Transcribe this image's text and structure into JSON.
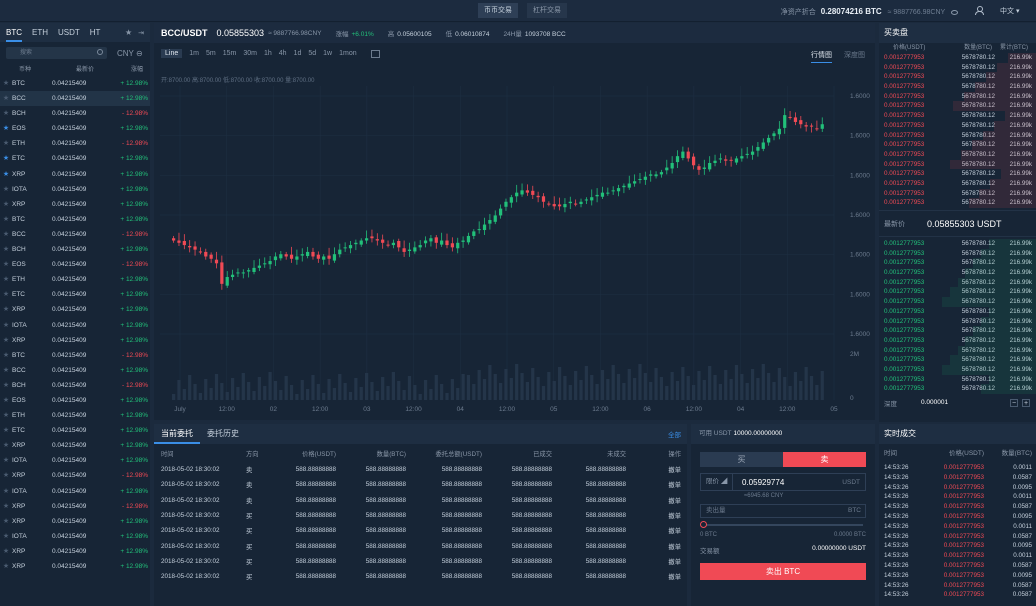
{
  "topbar": {
    "tabs": [
      {
        "label": "币币交易"
      },
      {
        "label": "杠杆交易"
      }
    ],
    "asset_label": "净资产折合",
    "asset_value": "0.28074216 BTC",
    "asset_cny": "≈ 9887766.98CNY",
    "lang": "中文"
  },
  "market_list": {
    "tabs": [
      "BTC",
      "ETH",
      "USDT",
      "HT"
    ],
    "search_placeholder": "搜索",
    "currency": "CNY",
    "headers": {
      "coin": "币种",
      "price": "最新价",
      "change": "涨幅"
    },
    "rows": [
      {
        "sym": "BTC",
        "price": "0.04215409",
        "change": "+ 12.98%",
        "dir": "up",
        "fav": false
      },
      {
        "sym": "BCC",
        "price": "0.04215409",
        "change": "+ 12.98%",
        "dir": "up",
        "fav": false
      },
      {
        "sym": "BCH",
        "price": "0.04215409",
        "change": "- 12.98%",
        "dir": "dn",
        "fav": false
      },
      {
        "sym": "EOS",
        "price": "0.04215409",
        "change": "+ 12.98%",
        "dir": "up",
        "fav": true
      },
      {
        "sym": "ETH",
        "price": "0.04215409",
        "change": "- 12.98%",
        "dir": "dn",
        "fav": false
      },
      {
        "sym": "ETC",
        "price": "0.04215409",
        "change": "+ 12.98%",
        "dir": "up",
        "fav": true
      },
      {
        "sym": "XRP",
        "price": "0.04215409",
        "change": "+ 12.98%",
        "dir": "up",
        "fav": true
      },
      {
        "sym": "IOTA",
        "price": "0.04215409",
        "change": "+ 12.98%",
        "dir": "up",
        "fav": false
      },
      {
        "sym": "XRP",
        "price": "0.04215409",
        "change": "+ 12.98%",
        "dir": "up",
        "fav": false
      },
      {
        "sym": "BTC",
        "price": "0.04215409",
        "change": "+ 12.98%",
        "dir": "up",
        "fav": false
      },
      {
        "sym": "BCC",
        "price": "0.04215409",
        "change": "- 12.98%",
        "dir": "dn",
        "fav": false
      },
      {
        "sym": "BCH",
        "price": "0.04215409",
        "change": "+ 12.98%",
        "dir": "up",
        "fav": false
      },
      {
        "sym": "EOS",
        "price": "0.04215409",
        "change": "- 12.98%",
        "dir": "dn",
        "fav": false
      },
      {
        "sym": "ETH",
        "price": "0.04215409",
        "change": "+ 12.98%",
        "dir": "up",
        "fav": false
      },
      {
        "sym": "ETC",
        "price": "0.04215409",
        "change": "+ 12.98%",
        "dir": "up",
        "fav": false
      },
      {
        "sym": "XRP",
        "price": "0.04215409",
        "change": "+ 12.98%",
        "dir": "up",
        "fav": false
      },
      {
        "sym": "IOTA",
        "price": "0.04215409",
        "change": "+ 12.98%",
        "dir": "up",
        "fav": false
      },
      {
        "sym": "XRP",
        "price": "0.04215409",
        "change": "+ 12.98%",
        "dir": "up",
        "fav": false
      },
      {
        "sym": "BTC",
        "price": "0.04215409",
        "change": "- 12.98%",
        "dir": "dn",
        "fav": false
      },
      {
        "sym": "BCC",
        "price": "0.04215409",
        "change": "+ 12.98%",
        "dir": "up",
        "fav": false
      },
      {
        "sym": "BCH",
        "price": "0.04215409",
        "change": "- 12.98%",
        "dir": "dn",
        "fav": false
      },
      {
        "sym": "EOS",
        "price": "0.04215409",
        "change": "+ 12.98%",
        "dir": "up",
        "fav": false
      },
      {
        "sym": "ETH",
        "price": "0.04215409",
        "change": "+ 12.98%",
        "dir": "up",
        "fav": false
      },
      {
        "sym": "ETC",
        "price": "0.04215409",
        "change": "+ 12.98%",
        "dir": "up",
        "fav": false
      },
      {
        "sym": "XRP",
        "price": "0.04215409",
        "change": "+ 12.98%",
        "dir": "up",
        "fav": false
      },
      {
        "sym": "IOTA",
        "price": "0.04215409",
        "change": "+ 12.98%",
        "dir": "up",
        "fav": false
      },
      {
        "sym": "XRP",
        "price": "0.04215409",
        "change": "- 12.98%",
        "dir": "dn",
        "fav": false
      },
      {
        "sym": "IOTA",
        "price": "0.04215409",
        "change": "+ 12.98%",
        "dir": "up",
        "fav": false
      },
      {
        "sym": "XRP",
        "price": "0.04215409",
        "change": "- 12.98%",
        "dir": "dn",
        "fav": false
      },
      {
        "sym": "XRP",
        "price": "0.04215409",
        "change": "+ 12.98%",
        "dir": "up",
        "fav": false
      },
      {
        "sym": "IOTA",
        "price": "0.04215409",
        "change": "+ 12.98%",
        "dir": "up",
        "fav": false
      },
      {
        "sym": "XRP",
        "price": "0.04215409",
        "change": "+ 12.98%",
        "dir": "up",
        "fav": false
      },
      {
        "sym": "XRP",
        "price": "0.04215409",
        "change": "+ 12.98%",
        "dir": "up",
        "fav": false
      }
    ]
  },
  "market_header": {
    "pair": "BCC/USDT",
    "price": "0.05855303",
    "cny": "≈ 9887766.98CNY",
    "stats": [
      {
        "label": "涨幅",
        "value": "+6.01%",
        "up": true
      },
      {
        "label": "高",
        "value": "0.05600105",
        "up": false
      },
      {
        "label": "低",
        "value": "0.06010874",
        "up": false
      },
      {
        "label": "24H量",
        "value": "1093708 BCC",
        "up": false
      }
    ]
  },
  "chart_toolbar": {
    "timeframes": [
      "Line",
      "1m",
      "5m",
      "15m",
      "30m",
      "1h",
      "4h",
      "1d",
      "5d",
      "1w",
      "1mon"
    ],
    "active": "Line",
    "views": [
      "行情图",
      "深度图"
    ]
  },
  "chart_ohlc": "开:8700.00  高:8700.00  低:8700.00  收:8700.00  量:8700.00",
  "chart_data": {
    "type": "candlestick",
    "x_tick_labels": [
      "July",
      "12:00",
      "02",
      "12:00",
      "03",
      "12:00",
      "04",
      "12:00",
      "05",
      "12:00",
      "06",
      "12:00",
      "04",
      "12:00",
      "05"
    ],
    "y_tick_labels": [
      "1.6000",
      "1.6000",
      "1.6000",
      "1.6000",
      "1.6000",
      "1.6000",
      "1.6000"
    ],
    "volume_ticks": [
      "2M",
      "0"
    ],
    "close_trend": [
      0.41,
      0.4,
      0.39,
      0.38,
      0.37,
      0.36,
      0.34,
      0.33,
      0.31,
      0.22,
      0.25,
      0.26,
      0.27,
      0.27,
      0.28,
      0.29,
      0.3,
      0.31,
      0.32,
      0.34,
      0.35,
      0.34,
      0.33,
      0.34,
      0.35,
      0.36,
      0.34,
      0.33,
      0.34,
      0.33,
      0.35,
      0.37,
      0.38,
      0.39,
      0.4,
      0.41,
      0.42,
      0.42,
      0.41,
      0.4,
      0.39,
      0.4,
      0.38,
      0.36,
      0.37,
      0.38,
      0.39,
      0.41,
      0.42,
      0.4,
      0.41,
      0.39,
      0.38,
      0.4,
      0.41,
      0.43,
      0.45,
      0.46,
      0.48,
      0.5,
      0.52,
      0.55,
      0.58,
      0.6,
      0.62,
      0.63,
      0.62,
      0.61,
      0.6,
      0.58,
      0.57,
      0.56,
      0.56,
      0.57,
      0.58,
      0.57,
      0.58,
      0.59,
      0.6,
      0.61,
      0.62,
      0.62,
      0.63,
      0.64,
      0.65,
      0.66,
      0.67,
      0.68,
      0.69,
      0.7,
      0.7,
      0.71,
      0.73,
      0.75,
      0.78,
      0.8,
      0.77,
      0.74,
      0.72,
      0.73,
      0.75,
      0.76,
      0.77,
      0.76,
      0.76,
      0.77,
      0.78,
      0.79,
      0.8,
      0.82,
      0.84,
      0.86,
      0.88,
      0.9,
      0.96,
      0.95,
      0.93,
      0.92,
      0.91,
      0.91,
      0.9,
      0.92
    ]
  },
  "orders": {
    "tabs": [
      "当前委托",
      "委托历史"
    ],
    "all": "全部",
    "headers": [
      "时间",
      "方向",
      "价格(USDT)",
      "数量(BTC)",
      "委托总额(USDT)",
      "已成交",
      "未成交",
      "操作"
    ],
    "rows": [
      {
        "time": "2018-05-02  18:30:02",
        "side": "卖",
        "type": "sell",
        "price": "588.88888888",
        "qty": "588.88888888",
        "total": "588.88888888",
        "filled": "588.88888888",
        "unfilled": "588.88888888",
        "op": "撤单"
      },
      {
        "time": "2018-05-02  18:30:02",
        "side": "卖",
        "type": "sell",
        "price": "588.88888888",
        "qty": "588.88888888",
        "total": "588.88888888",
        "filled": "588.88888888",
        "unfilled": "588.88888888",
        "op": "撤单"
      },
      {
        "time": "2018-05-02  18:30:02",
        "side": "卖",
        "type": "sell",
        "price": "588.88888888",
        "qty": "588.88888888",
        "total": "588.88888888",
        "filled": "588.88888888",
        "unfilled": "588.88888888",
        "op": "撤单"
      },
      {
        "time": "2018-05-02  18:30:02",
        "side": "买",
        "type": "buy",
        "price": "588.88888888",
        "qty": "588.88888888",
        "total": "588.88888888",
        "filled": "588.88888888",
        "unfilled": "588.88888888",
        "op": "撤单"
      },
      {
        "time": "2018-05-02  18:30:02",
        "side": "买",
        "type": "buy",
        "price": "588.88888888",
        "qty": "588.88888888",
        "total": "588.88888888",
        "filled": "588.88888888",
        "unfilled": "588.88888888",
        "op": "撤单"
      },
      {
        "time": "2018-05-02  18:30:02",
        "side": "买",
        "type": "buy",
        "price": "588.88888888",
        "qty": "588.88888888",
        "total": "588.88888888",
        "filled": "588.88888888",
        "unfilled": "588.88888888",
        "op": "撤单"
      },
      {
        "time": "2018-05-02  18:30:02",
        "side": "买",
        "type": "buy",
        "price": "588.88888888",
        "qty": "588.88888888",
        "total": "588.88888888",
        "filled": "588.88888888",
        "unfilled": "588.88888888",
        "op": "撤单"
      },
      {
        "time": "2018-05-02  18:30:02",
        "side": "买",
        "type": "buy",
        "price": "588.88888888",
        "qty": "588.88888888",
        "total": "588.88888888",
        "filled": "588.88888888",
        "unfilled": "588.88888888",
        "op": "撤单"
      }
    ]
  },
  "trade_form": {
    "avail_label": "可用 USDT",
    "avail_value": "10000.00000000",
    "buy_label": "买",
    "sell_label": "卖",
    "price_type": "限价",
    "price_value": "0.05929774",
    "price_unit": "USDT",
    "price_cny": "≈6945.68 CNY",
    "amount_placeholder": "卖出量",
    "amount_unit": "BTC",
    "range_min": "0 BTC",
    "range_max": "0.0000 BTC",
    "total_label": "交易额",
    "total_value": "0.00000000 USDT",
    "submit_label": "卖出 BTC"
  },
  "orderbook": {
    "title": "买卖盘",
    "headers": [
      "价格(USDT)",
      "数量(BTC)",
      "累计(BTC)"
    ],
    "asks": [
      {
        "price": "0.0012777953",
        "amount": "5678780.12",
        "total": "216.99k"
      },
      {
        "price": "0.0012777953",
        "amount": "5678780.12",
        "total": "216.99k"
      },
      {
        "price": "0.0012777953",
        "amount": "5678780.12",
        "total": "216.99k"
      },
      {
        "price": "0.0012777953",
        "amount": "5678780.12",
        "total": "216.99k"
      },
      {
        "price": "0.0012777953",
        "amount": "5678780.12",
        "total": "216.99k"
      },
      {
        "price": "0.0012777953",
        "amount": "5678780.12",
        "total": "216.99k"
      },
      {
        "price": "0.0012777953",
        "amount": "5678780.12",
        "total": "216.99k"
      },
      {
        "price": "0.0012777953",
        "amount": "5678780.12",
        "total": "216.99k"
      },
      {
        "price": "0.0012777953",
        "amount": "5678780.12",
        "total": "216.99k"
      },
      {
        "price": "0.0012777953",
        "amount": "5678780.12",
        "total": "216.99k"
      },
      {
        "price": "0.0012777953",
        "amount": "5678780.12",
        "total": "216.99k"
      },
      {
        "price": "0.0012777953",
        "amount": "5678780.12",
        "total": "216.99k"
      },
      {
        "price": "0.0012777953",
        "amount": "5678780.12",
        "total": "216.99k"
      },
      {
        "price": "0.0012777953",
        "amount": "5678780.12",
        "total": "216.99k"
      },
      {
        "price": "0.0012777953",
        "amount": "5678780.12",
        "total": "216.99k"
      },
      {
        "price": "0.0012777953",
        "amount": "5678780.12",
        "total": "216.99k"
      }
    ],
    "last_label": "最新价",
    "last_value": "0.05855303 USDT",
    "bids": [
      {
        "price": "0.0012777953",
        "amount": "5678780.12",
        "total": "216.99k"
      },
      {
        "price": "0.0012777953",
        "amount": "5678780.12",
        "total": "216.99k"
      },
      {
        "price": "0.0012777953",
        "amount": "5678780.12",
        "total": "216.99k"
      },
      {
        "price": "0.0012777953",
        "amount": "5678780.12",
        "total": "216.99k"
      },
      {
        "price": "0.0012777953",
        "amount": "5678780.12",
        "total": "216.99k"
      },
      {
        "price": "0.0012777953",
        "amount": "5678780.12",
        "total": "216.99k"
      },
      {
        "price": "0.0012777953",
        "amount": "5678780.12",
        "total": "216.99k"
      },
      {
        "price": "0.0012777953",
        "amount": "5678780.12",
        "total": "216.99k"
      },
      {
        "price": "0.0012777953",
        "amount": "5678780.12",
        "total": "216.99k"
      },
      {
        "price": "0.0012777953",
        "amount": "5678780.12",
        "total": "216.99k"
      },
      {
        "price": "0.0012777953",
        "amount": "5678780.12",
        "total": "216.99k"
      },
      {
        "price": "0.0012777953",
        "amount": "5678780.12",
        "total": "216.99k"
      },
      {
        "price": "0.0012777953",
        "amount": "5678780.12",
        "total": "216.99k"
      },
      {
        "price": "0.0012777953",
        "amount": "5678780.12",
        "total": "216.99k"
      },
      {
        "price": "0.0012777953",
        "amount": "5678780.12",
        "total": "216.99k"
      },
      {
        "price": "0.0012777953",
        "amount": "5678780.12",
        "total": "216.99k"
      }
    ],
    "depth_label": "深度",
    "depth_value": "0.000001"
  },
  "trades": {
    "title": "实时成交",
    "headers": [
      "时间",
      "价格(USDT)",
      "数量(BTC)"
    ],
    "rows": [
      {
        "time": "14:53:26",
        "price": "0.0012777953",
        "amount": "0.0011"
      },
      {
        "time": "14:53:26",
        "price": "0.0012777953",
        "amount": "0.0587"
      },
      {
        "time": "14:53:26",
        "price": "0.0012777953",
        "amount": "0.0095"
      },
      {
        "time": "14:53:26",
        "price": "0.0012777953",
        "amount": "0.0011"
      },
      {
        "time": "14:53:26",
        "price": "0.0012777953",
        "amount": "0.0587"
      },
      {
        "time": "14:53:26",
        "price": "0.0012777953",
        "amount": "0.0095"
      },
      {
        "time": "14:53:26",
        "price": "0.0012777953",
        "amount": "0.0011"
      },
      {
        "time": "14:53:26",
        "price": "0.0012777953",
        "amount": "0.0587"
      },
      {
        "time": "14:53:26",
        "price": "0.0012777953",
        "amount": "0.0095"
      },
      {
        "time": "14:53:26",
        "price": "0.0012777953",
        "amount": "0.0011"
      },
      {
        "time": "14:53:26",
        "price": "0.0012777953",
        "amount": "0.0587"
      },
      {
        "time": "14:53:26",
        "price": "0.0012777953",
        "amount": "0.0095"
      },
      {
        "time": "14:53:26",
        "price": "0.0012777953",
        "amount": "0.0587"
      },
      {
        "time": "14:53:26",
        "price": "0.0012777953",
        "amount": "0.0587"
      }
    ]
  },
  "colors": {
    "up": "#22c07a",
    "down": "#f04a55",
    "accent": "#3a8ee6"
  }
}
